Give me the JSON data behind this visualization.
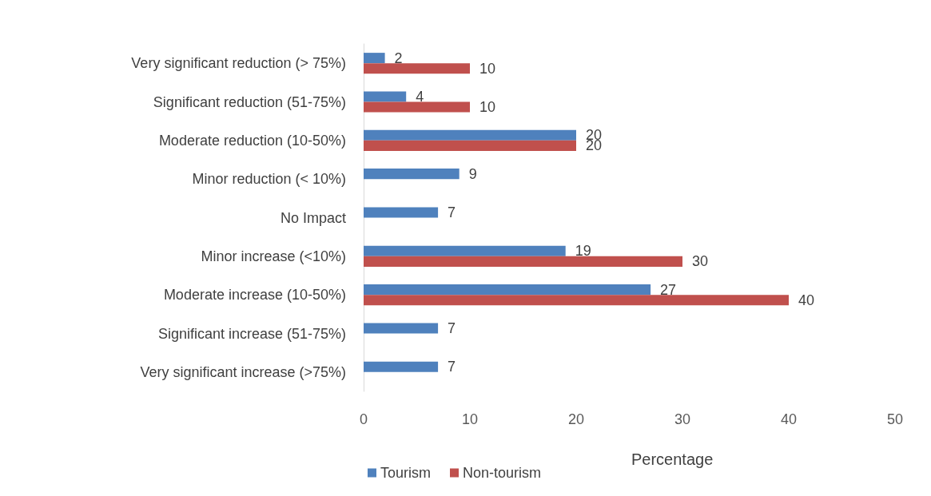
{
  "chart_data": {
    "type": "bar",
    "orientation": "horizontal",
    "xlabel": "Percentage",
    "categories": [
      "Very significant reduction (> 75%)",
      "Significant reduction (51-75%)",
      "Moderate reduction (10-50%)",
      "Minor reduction (< 10%)",
      "No Impact",
      "Minor increase (<10%)",
      "Moderate increase (10-50%)",
      "Significant increase (51-75%)",
      "Very significant increase (>75%)"
    ],
    "series": [
      {
        "name": "Tourism",
        "color": "#4f81bd",
        "values": [
          2,
          4,
          20,
          9,
          7,
          19,
          27,
          7,
          7
        ]
      },
      {
        "name": "Non-tourism",
        "color": "#c0504d",
        "values": [
          10,
          10,
          20,
          null,
          null,
          30,
          40,
          null,
          null
        ]
      }
    ],
    "xlim": [
      0,
      50
    ],
    "xticks": [
      0,
      10,
      20,
      30,
      40,
      50
    ],
    "grid": false,
    "legend": "bottom left",
    "data_labels": true
  }
}
